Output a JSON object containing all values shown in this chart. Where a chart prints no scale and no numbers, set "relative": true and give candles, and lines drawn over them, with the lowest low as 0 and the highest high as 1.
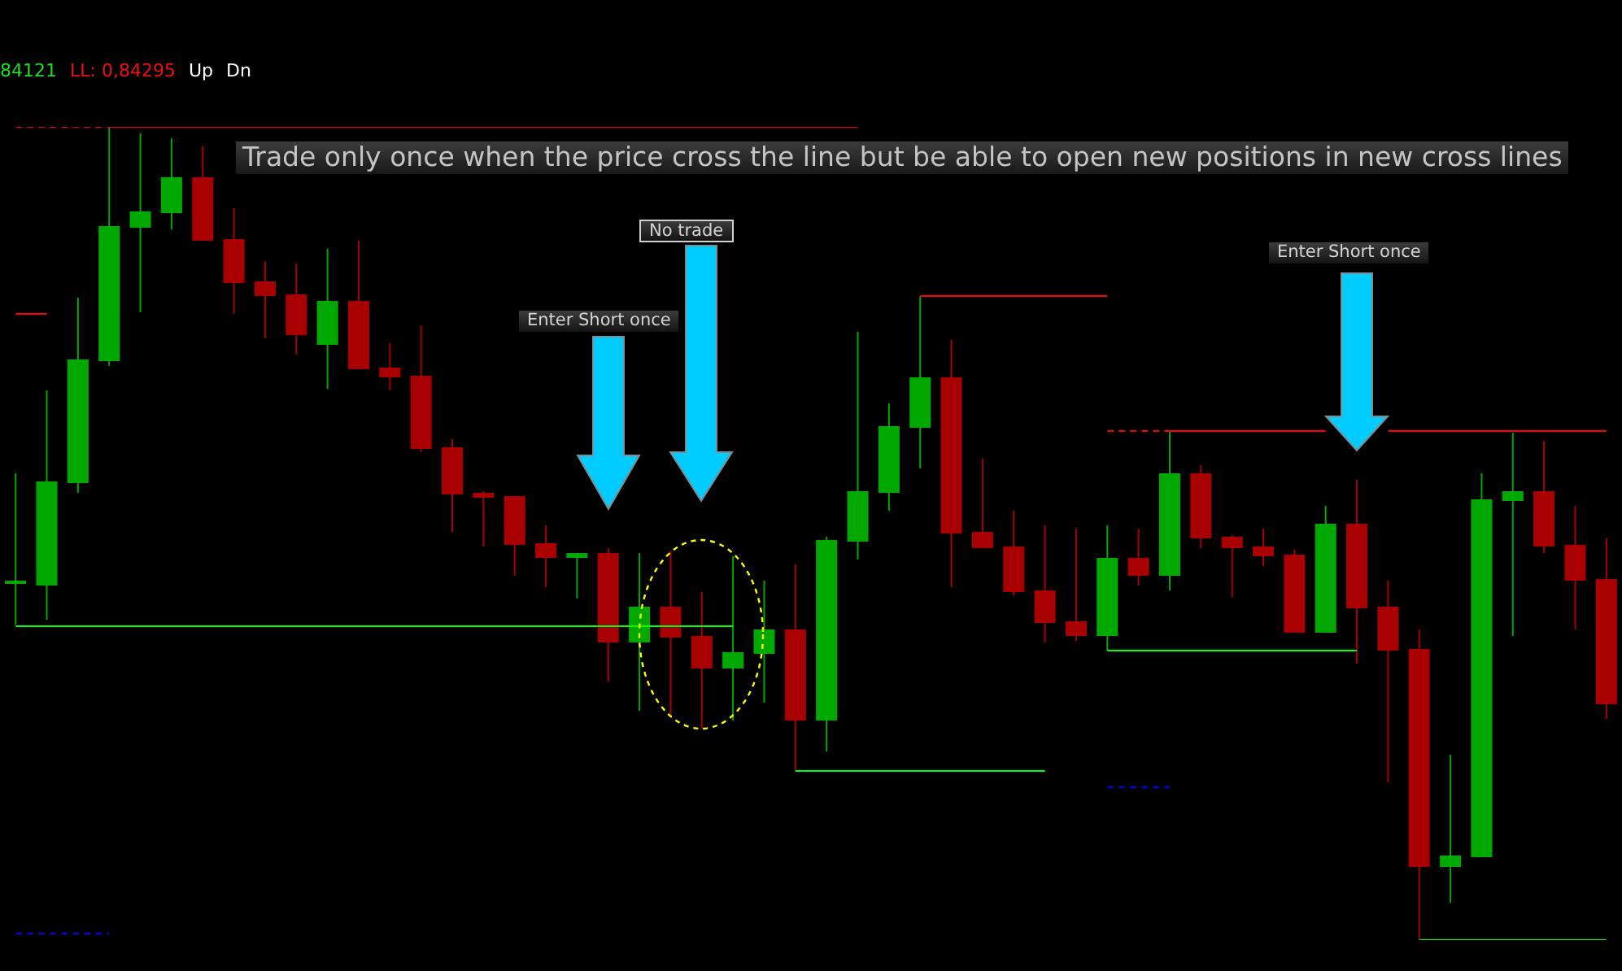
{
  "chart_data": {
    "type": "candlestick",
    "relative": true,
    "tick_labels": false,
    "categories": [
      null,
      null,
      null,
      null,
      null,
      null,
      null,
      null,
      null,
      null,
      null,
      null,
      null,
      null,
      null,
      null,
      null,
      null,
      null,
      null,
      null,
      null,
      null,
      null,
      null,
      null,
      null,
      null,
      null,
      null,
      null,
      null,
      null,
      null,
      null,
      null,
      null,
      null,
      null,
      null,
      null,
      null,
      null,
      null,
      null,
      null,
      null,
      null,
      null,
      null,
      null,
      null
    ],
    "ohlc": [
      [
        0.438,
        0.574,
        0.388,
        0.438
      ],
      [
        0.436,
        0.676,
        0.394,
        0.564
      ],
      [
        0.562,
        0.79,
        0.55,
        0.714
      ],
      [
        0.712,
        1,
        0.706,
        0.878
      ],
      [
        0.876,
        0.992,
        0.772,
        0.896
      ],
      [
        0.894,
        0.986,
        0.874,
        0.938
      ],
      [
        0.938,
        0.976,
        0.86,
        0.86
      ],
      [
        0.862,
        0.9,
        0.77,
        0.808
      ],
      [
        0.81,
        0.834,
        0.74,
        0.792
      ],
      [
        0.794,
        0.832,
        0.72,
        0.744
      ],
      [
        0.732,
        0.85,
        0.678,
        0.786
      ],
      [
        0.786,
        0.86,
        0.702,
        0.702
      ],
      [
        0.704,
        0.734,
        0.676,
        0.692
      ],
      [
        0.694,
        0.756,
        0.6,
        0.604
      ],
      [
        0.606,
        0.616,
        0.502,
        0.548
      ],
      [
        0.55,
        0.552,
        0.484,
        0.544
      ],
      [
        0.546,
        0.546,
        0.448,
        0.486
      ],
      [
        0.488,
        0.51,
        0.434,
        0.47
      ],
      [
        0.47,
        0.476,
        0.42,
        0.476
      ],
      [
        0.476,
        0.482,
        0.318,
        0.366
      ],
      [
        0.366,
        0.476,
        0.282,
        0.41
      ],
      [
        0.41,
        0.478,
        0.276,
        0.372
      ],
      [
        0.374,
        0.428,
        0.26,
        0.334
      ],
      [
        0.334,
        0.472,
        0.27,
        0.354
      ],
      [
        0.352,
        0.442,
        0.292,
        0.382
      ],
      [
        0.382,
        0.462,
        0.208,
        0.27
      ],
      [
        0.27,
        0.496,
        0.232,
        0.492
      ],
      [
        0.49,
        0.748,
        0.468,
        0.552
      ],
      [
        0.55,
        0.66,
        0.528,
        0.632
      ],
      [
        0.63,
        0.792,
        0.58,
        0.692
      ],
      [
        0.692,
        0.738,
        0.434,
        0.5
      ],
      [
        0.502,
        0.592,
        0.482,
        0.482
      ],
      [
        0.484,
        0.528,
        0.424,
        0.428
      ],
      [
        0.43,
        0.51,
        0.366,
        0.39
      ],
      [
        0.392,
        0.506,
        0.368,
        0.374
      ],
      [
        0.374,
        0.51,
        0.356,
        0.47
      ],
      [
        0.47,
        0.506,
        0.436,
        0.448
      ],
      [
        0.448,
        0.626,
        0.43,
        0.574
      ],
      [
        0.574,
        0.584,
        0.482,
        0.494
      ],
      [
        0.496,
        0.498,
        0.422,
        0.482
      ],
      [
        0.484,
        0.506,
        0.46,
        0.472
      ],
      [
        0.474,
        0.48,
        0.378,
        0.378
      ],
      [
        0.378,
        0.534,
        0.378,
        0.512
      ],
      [
        0.512,
        0.566,
        0.34,
        0.408
      ],
      [
        0.41,
        0.442,
        0.194,
        0.356
      ],
      [
        0.358,
        0.382,
        0,
        0.09
      ],
      [
        0.09,
        0.228,
        0.046,
        0.104
      ],
      [
        0.102,
        0.574,
        0.102,
        0.542
      ],
      [
        0.54,
        0.624,
        0.374,
        0.552
      ],
      [
        0.552,
        0.614,
        0.476,
        0.484
      ],
      [
        0.486,
        0.534,
        0.382,
        0.442
      ],
      [
        0.444,
        0.494,
        0.272,
        0.29
      ]
    ],
    "colors": [
      "#00a800",
      "#00a800",
      "#00a800",
      "#00a800",
      "#00a800",
      "#00a800",
      "#a80000",
      "#a80000",
      "#a80000",
      "#a80000",
      "#00a800",
      "#a80000",
      "#a80000",
      "#a80000",
      "#a80000",
      "#a80000",
      "#a80000",
      "#a80000",
      "#00a800",
      "#a80000",
      "#00a800",
      "#a80000",
      "#a80000",
      "#00a800",
      "#00a800",
      "#a80000",
      "#00a800",
      "#00a800",
      "#00a800",
      "#00a800",
      "#a80000",
      "#a80000",
      "#a80000",
      "#a80000",
      "#a80000",
      "#00a800",
      "#a80000",
      "#00a800",
      "#a80000",
      "#a80000",
      "#a80000",
      "#a80000",
      "#00a800",
      "#a80000",
      "#a80000",
      "#a80000",
      "#00a800",
      "#00a800",
      "#00a800",
      "#a80000",
      "#a80000",
      "#a80000"
    ],
    "series": [
      {
        "type": "line",
        "color": "#ff0000",
        "line_style": "dashed",
        "values": [
          1,
          1,
          1,
          1,
          null,
          null,
          null,
          null,
          null,
          null,
          null,
          null,
          null,
          null,
          null,
          null,
          null,
          null,
          null,
          null,
          null,
          null,
          null,
          null,
          null,
          null,
          null,
          null,
          null,
          null,
          null,
          null,
          null,
          null,
          null,
          null,
          null,
          null,
          null,
          null,
          null,
          null,
          null,
          null,
          null,
          null,
          null,
          null,
          null,
          null,
          null,
          null
        ]
      },
      {
        "type": "line",
        "color": "#ff0000",
        "values": [
          null,
          null,
          null,
          1,
          1,
          1,
          1,
          1,
          1,
          1,
          1,
          1,
          1,
          1,
          1,
          1,
          1,
          1,
          1,
          1,
          1,
          1,
          1,
          1,
          1,
          1,
          1,
          1,
          null,
          null,
          null,
          null,
          null,
          null,
          null,
          null,
          null,
          null,
          null,
          null,
          null,
          null,
          null,
          null,
          null,
          null,
          null,
          null,
          null,
          null,
          null,
          null
        ]
      },
      {
        "type": "line",
        "color": "#ff0000",
        "values": [
          0.77,
          0.77,
          null,
          null,
          null,
          null,
          null,
          null,
          null,
          null,
          null,
          null,
          null,
          null,
          null,
          null,
          null,
          null,
          null,
          null,
          null,
          null,
          null,
          null,
          null,
          null,
          null,
          null,
          null,
          null,
          null,
          null,
          null,
          null,
          null,
          null,
          null,
          null,
          null,
          null,
          null,
          null,
          null,
          null,
          null,
          null,
          null,
          null,
          null,
          null,
          null,
          null
        ]
      },
      {
        "type": "line",
        "color": "#00ff00",
        "values": [
          0.386,
          0.386,
          0.386,
          0.386,
          0.386,
          0.386,
          0.386,
          0.386,
          0.386,
          0.386,
          0.386,
          0.386,
          0.386,
          0.386,
          0.386,
          0.386,
          0.386,
          0.386,
          0.386,
          0.386,
          0.386,
          0.386,
          0.386,
          0.386,
          null,
          null,
          null,
          null,
          null,
          null,
          null,
          null,
          null,
          null,
          null,
          null,
          null,
          null,
          null,
          null,
          null,
          null,
          null,
          null,
          null,
          null,
          null,
          null,
          null,
          null,
          null,
          null
        ]
      },
      {
        "type": "line",
        "color": "#0000ff",
        "line_style": "dashed",
        "values": [
          0.008,
          0.008,
          0.008,
          0.008,
          null,
          null,
          null,
          null,
          null,
          null,
          null,
          null,
          null,
          null,
          null,
          null,
          null,
          null,
          null,
          null,
          null,
          null,
          null,
          null,
          null,
          null,
          null,
          null,
          null,
          null,
          null,
          null,
          null,
          null,
          null,
          null,
          null,
          null,
          null,
          null,
          null,
          null,
          null,
          null,
          null,
          null,
          null,
          null,
          null,
          null,
          null,
          null
        ]
      },
      {
        "type": "line",
        "color": "#ff0000",
        "values": [
          null,
          null,
          null,
          null,
          null,
          null,
          null,
          null,
          null,
          null,
          null,
          null,
          null,
          null,
          null,
          null,
          null,
          null,
          null,
          null,
          null,
          null,
          null,
          null,
          null,
          null,
          null,
          null,
          null,
          0.792,
          0.792,
          0.792,
          0.792,
          0.792,
          0.792,
          0.792,
          null,
          null,
          null,
          null,
          null,
          null,
          null,
          null,
          null,
          null,
          null,
          null,
          null,
          null,
          null,
          null
        ]
      },
      {
        "type": "line",
        "color": "#00ff00",
        "values": [
          null,
          null,
          null,
          null,
          null,
          null,
          null,
          null,
          null,
          null,
          null,
          null,
          null,
          null,
          null,
          null,
          null,
          null,
          null,
          null,
          null,
          null,
          null,
          null,
          null,
          0.208,
          0.208,
          0.208,
          0.208,
          0.208,
          0.208,
          0.208,
          0.208,
          0.208,
          null,
          null,
          null,
          null,
          null,
          null,
          null,
          null,
          null,
          null,
          null,
          null,
          null,
          null,
          null,
          null,
          null,
          null
        ]
      },
      {
        "type": "line",
        "color": "#ff0000",
        "line_style": "dashed",
        "values": [
          null,
          null,
          null,
          null,
          null,
          null,
          null,
          null,
          null,
          null,
          null,
          null,
          null,
          null,
          null,
          null,
          null,
          null,
          null,
          null,
          null,
          null,
          null,
          null,
          null,
          null,
          null,
          null,
          null,
          null,
          null,
          null,
          null,
          null,
          null,
          0.626,
          0.626,
          0.626,
          null,
          null,
          null,
          null,
          null,
          null,
          null,
          null,
          null,
          null,
          null,
          null,
          null,
          null
        ]
      },
      {
        "type": "line",
        "color": "#ff0000",
        "values": [
          null,
          null,
          null,
          null,
          null,
          null,
          null,
          null,
          null,
          null,
          null,
          null,
          null,
          null,
          null,
          null,
          null,
          null,
          null,
          null,
          null,
          null,
          null,
          null,
          null,
          null,
          null,
          null,
          null,
          null,
          null,
          null,
          null,
          null,
          null,
          null,
          null,
          0.626,
          0.626,
          0.626,
          0.626,
          0.626,
          0.626,
          null,
          0.626,
          0.626,
          0.626,
          0.626,
          0.626,
          0.626,
          0.626,
          0.626
        ]
      },
      {
        "type": "line",
        "color": "#00ff00",
        "values": [
          null,
          null,
          null,
          null,
          null,
          null,
          null,
          null,
          null,
          null,
          null,
          null,
          null,
          null,
          null,
          null,
          null,
          null,
          null,
          null,
          null,
          null,
          null,
          null,
          null,
          null,
          null,
          null,
          null,
          null,
          null,
          null,
          null,
          null,
          null,
          0.356,
          0.356,
          0.356,
          0.356,
          0.356,
          0.356,
          0.356,
          0.356,
          0.356,
          null,
          null,
          null,
          null,
          null,
          null,
          null,
          null
        ]
      },
      {
        "type": "line",
        "color": "#0000ff",
        "line_style": "dashed",
        "values": [
          null,
          null,
          null,
          null,
          null,
          null,
          null,
          null,
          null,
          null,
          null,
          null,
          null,
          null,
          null,
          null,
          null,
          null,
          null,
          null,
          null,
          null,
          null,
          null,
          null,
          null,
          null,
          null,
          null,
          null,
          null,
          null,
          null,
          null,
          null,
          0.188,
          0.188,
          0.188,
          null,
          null,
          null,
          null,
          null,
          null,
          null,
          null,
          null,
          null,
          null,
          null,
          null,
          null
        ]
      },
      {
        "type": "line",
        "color": "#00ff00",
        "values": [
          null,
          null,
          null,
          null,
          null,
          null,
          null,
          null,
          null,
          null,
          null,
          null,
          null,
          null,
          null,
          null,
          null,
          null,
          null,
          null,
          null,
          null,
          null,
          null,
          null,
          null,
          null,
          null,
          null,
          null,
          null,
          null,
          null,
          null,
          null,
          null,
          null,
          null,
          null,
          null,
          null,
          null,
          null,
          null,
          null,
          0,
          0,
          0,
          0,
          0,
          0,
          0
        ]
      }
    ],
    "annotations": [
      "84121",
      "LL: 0,84295",
      "Up",
      "Dn",
      "Trade only once when the price cross the line but be able to open new positions in new cross lines",
      "Enter Short once",
      "No trade",
      "Enter Short once"
    ]
  }
}
